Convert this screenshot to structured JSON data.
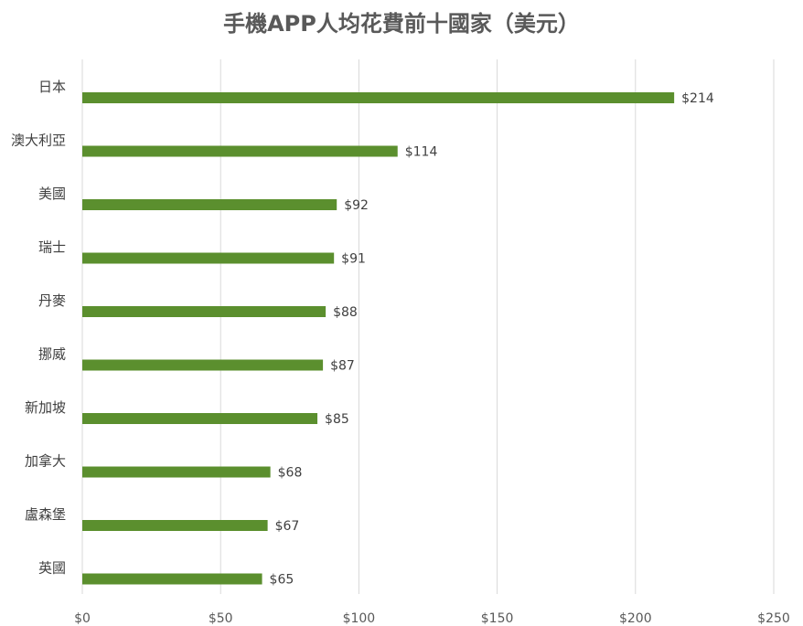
{
  "chart_data": {
    "type": "bar",
    "orientation": "horizontal",
    "title": "手機APP人均花費前十國家（美元）",
    "categories": [
      "日本",
      "澳大利亞",
      "美國",
      "瑞士",
      "丹麥",
      "挪威",
      "新加坡",
      "加拿大",
      "盧森堡",
      "英國"
    ],
    "values": [
      214,
      114,
      92,
      91,
      88,
      87,
      85,
      68,
      67,
      65
    ],
    "data_labels": [
      "$214",
      "$114",
      "$92",
      "$91",
      "$88",
      "$87",
      "$85",
      "$68",
      "$67",
      "$65"
    ],
    "x_ticks": [
      "$0",
      "$50",
      "$100",
      "$150",
      "$200",
      "$250"
    ],
    "xlim": [
      0,
      250
    ],
    "xlabel": "",
    "ylabel": "",
    "grid": true,
    "bar_color": "#5b8f2e"
  }
}
